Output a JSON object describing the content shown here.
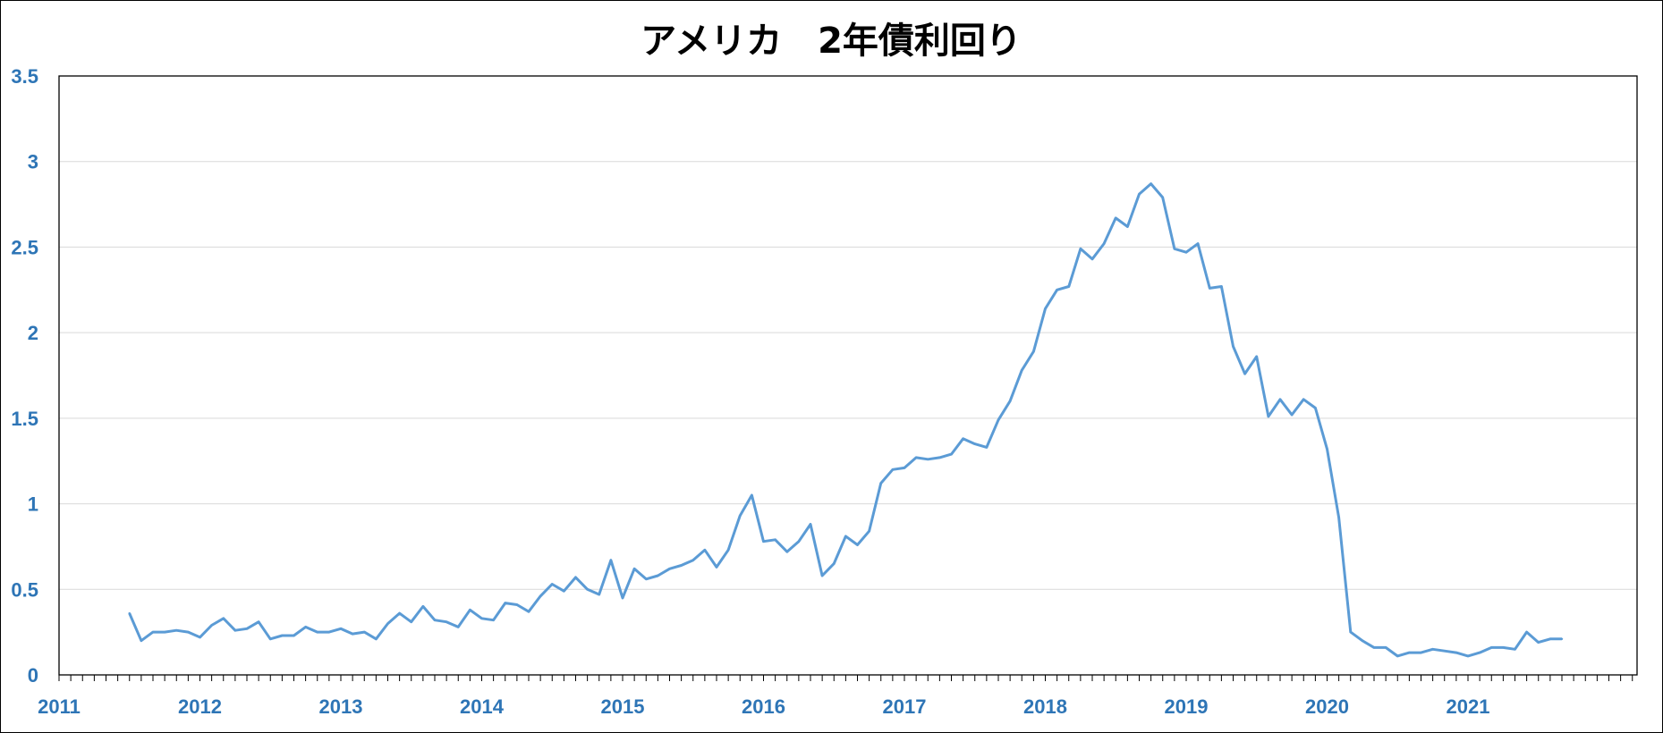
{
  "chart_data": {
    "type": "line",
    "title": "アメリカ　2年債利回り",
    "xlabel": "",
    "ylabel": "",
    "xlim": [
      2011,
      2022.2
    ],
    "ylim": [
      0,
      3.5
    ],
    "x_ticks": [
      "2011",
      "2012",
      "2013",
      "2014",
      "2015",
      "2016",
      "2017",
      "2018",
      "2019",
      "2020",
      "2021"
    ],
    "y_ticks": [
      "0",
      "0.5",
      "1",
      "1.5",
      "2",
      "2.5",
      "3",
      "3.5"
    ],
    "grid": true,
    "legend": "none",
    "colors": {
      "line": "#5B9BD5",
      "tick_label": "#2E75B6",
      "grid": "#D9D9D9",
      "axis": "#000000"
    },
    "series": [
      {
        "x_start": "2011-07",
        "step": "month",
        "values": [
          0.36,
          0.2,
          0.25,
          0.25,
          0.26,
          0.25,
          0.22,
          0.29,
          0.33,
          0.26,
          0.27,
          0.31,
          0.21,
          0.23,
          0.23,
          0.28,
          0.25,
          0.25,
          0.27,
          0.24,
          0.25,
          0.21,
          0.3,
          0.36,
          0.31,
          0.4,
          0.32,
          0.31,
          0.28,
          0.38,
          0.33,
          0.32,
          0.42,
          0.41,
          0.37,
          0.46,
          0.53,
          0.49,
          0.57,
          0.5,
          0.47,
          0.67,
          0.45,
          0.62,
          0.56,
          0.58,
          0.62,
          0.64,
          0.67,
          0.73,
          0.63,
          0.73,
          0.93,
          1.05,
          0.78,
          0.79,
          0.72,
          0.78,
          0.88,
          0.58,
          0.65,
          0.81,
          0.76,
          0.84,
          1.12,
          1.2,
          1.21,
          1.27,
          1.26,
          1.27,
          1.29,
          1.38,
          1.35,
          1.33,
          1.49,
          1.6,
          1.78,
          1.89,
          2.14,
          2.25,
          2.27,
          2.49,
          2.43,
          2.52,
          2.67,
          2.62,
          2.81,
          2.87,
          2.79,
          2.49,
          2.47,
          2.52,
          2.26,
          2.27,
          1.92,
          1.76,
          1.86,
          1.51,
          1.61,
          1.52,
          1.61,
          1.56,
          1.32,
          0.92,
          0.25,
          0.2,
          0.16,
          0.16,
          0.11,
          0.13,
          0.13,
          0.15,
          0.14,
          0.13,
          0.11,
          0.13,
          0.16,
          0.16,
          0.15,
          0.25,
          0.19,
          0.21,
          0.21
        ]
      }
    ]
  }
}
